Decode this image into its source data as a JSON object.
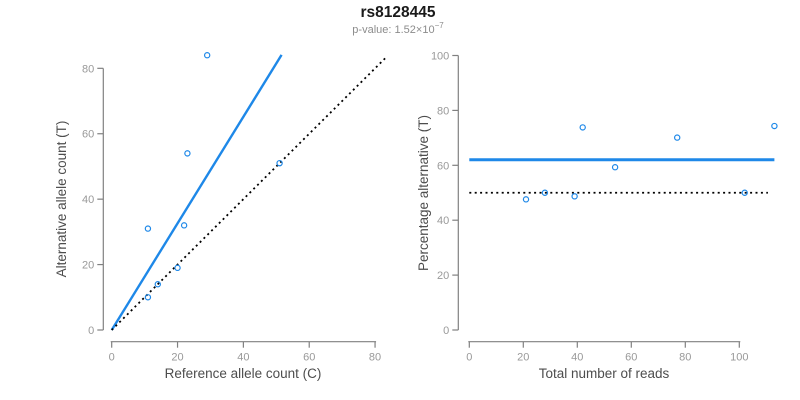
{
  "header": {
    "title": "rs8128445",
    "p_label": "p-value: 1.52×10",
    "p_exponent": "−7"
  },
  "colors": {
    "accent_blue": "#1E88E8",
    "dotted_line": "#000000",
    "title_text": "#1a1a1a",
    "subtitle_text": "#8c8c8c",
    "tick_label": "#999999",
    "axis_title": "#4d4d4d",
    "axis_line": "#808080"
  },
  "chart_data": [
    {
      "type": "scatter",
      "panel": "allele-counts",
      "xlabel": "Reference allele count (C)",
      "ylabel": "Alternative allele count (T)",
      "xlim": [
        0,
        83.6
      ],
      "ylim": [
        0,
        85
      ],
      "xticks": [
        0,
        20,
        40,
        60,
        80
      ],
      "yticks": [
        0,
        20,
        40,
        60,
        80
      ],
      "grid": false,
      "points": [
        [
          11,
          10
        ],
        [
          14,
          14
        ],
        [
          20,
          19
        ],
        [
          11,
          31
        ],
        [
          22,
          32
        ],
        [
          23,
          54
        ],
        [
          29,
          84
        ],
        [
          51,
          51
        ]
      ],
      "fit_line": {
        "x1": 0,
        "y1": 0,
        "x2": 51.6,
        "y2": 84.1
      },
      "identity_line": {
        "x1": 0,
        "y1": 0,
        "x2": 83.6,
        "y2": 83.6
      }
    },
    {
      "type": "scatter",
      "panel": "percentage-vs-depth",
      "xlabel": "Total number of reads",
      "ylabel": "Percentage alternative (T)",
      "xlim": [
        0,
        113
      ],
      "ylim": [
        0,
        100
      ],
      "xticks": [
        0,
        20,
        40,
        60,
        80,
        100
      ],
      "yticks": [
        0,
        20,
        40,
        60,
        80,
        100
      ],
      "grid": false,
      "points": [
        [
          21,
          47.6
        ],
        [
          28,
          50
        ],
        [
          39,
          48.7
        ],
        [
          42,
          73.8
        ],
        [
          54,
          59.3
        ],
        [
          77,
          70.1
        ],
        [
          102,
          50
        ],
        [
          113,
          74.3
        ]
      ],
      "mean_line": {
        "y": 62,
        "x1": 0,
        "x2": 113
      },
      "reference_line": {
        "y": 50,
        "x1": 0,
        "x2": 110.6
      }
    }
  ]
}
